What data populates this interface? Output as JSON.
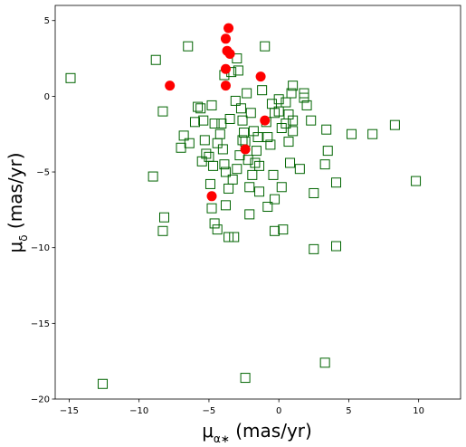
{
  "chart_data": {
    "type": "scatter",
    "xlabel": {
      "symbol": "μ",
      "sub": "α∗",
      "rest": " (mas/yr)"
    },
    "ylabel": {
      "symbol": "μ",
      "sub": "δ",
      "rest": " (mas/yr)"
    },
    "xlim": [
      -16,
      13
    ],
    "ylim": [
      -20,
      6
    ],
    "xticks": [
      -15,
      -10,
      -5,
      0,
      5,
      10
    ],
    "yticks": [
      -20,
      -15,
      -10,
      -5,
      0,
      5
    ],
    "grid": false,
    "colors": {
      "squares": "#006400",
      "circles": "#ff0000"
    },
    "series": [
      {
        "marker": "square-open",
        "points": [
          [
            -14.9,
            1.2
          ],
          [
            -12.6,
            -19.0
          ],
          [
            -9.0,
            -5.3
          ],
          [
            -8.8,
            2.4
          ],
          [
            -8.3,
            -1.0
          ],
          [
            -8.2,
            -8.0
          ],
          [
            -8.3,
            -8.9
          ],
          [
            -6.5,
            3.3
          ],
          [
            -5.8,
            -0.7
          ],
          [
            -5.4,
            -1.6
          ],
          [
            -5.3,
            -2.9
          ],
          [
            -5.0,
            -4.0
          ],
          [
            -4.8,
            -0.6
          ],
          [
            -4.6,
            -1.8
          ],
          [
            -4.9,
            -5.8
          ],
          [
            -4.8,
            -7.4
          ],
          [
            -4.6,
            -8.4
          ],
          [
            -4.4,
            -8.8
          ],
          [
            -4.2,
            -2.5
          ],
          [
            -4.0,
            -3.5
          ],
          [
            -3.9,
            -4.5
          ],
          [
            -3.8,
            -5.0
          ],
          [
            -3.8,
            -7.2
          ],
          [
            -3.6,
            -9.3
          ],
          [
            -3.2,
            -9.3
          ],
          [
            -3.5,
            -1.5
          ],
          [
            -3.4,
            1.6
          ],
          [
            -3.0,
            2.5
          ],
          [
            -2.7,
            -0.8
          ],
          [
            -2.6,
            -1.6
          ],
          [
            -2.5,
            -2.4
          ],
          [
            -2.4,
            -3.0
          ],
          [
            -2.2,
            -4.2
          ],
          [
            -2.1,
            -6.0
          ],
          [
            -2.1,
            -7.8
          ],
          [
            -2.3,
            0.2
          ],
          [
            -2.0,
            -1.1
          ],
          [
            -1.8,
            -2.3
          ],
          [
            -1.6,
            -3.6
          ],
          [
            -1.4,
            -4.6
          ],
          [
            -1.4,
            -6.3
          ],
          [
            -1.2,
            0.4
          ],
          [
            -1.0,
            3.3
          ],
          [
            -0.9,
            -1.7
          ],
          [
            -0.8,
            -2.7
          ],
          [
            -0.8,
            -7.3
          ],
          [
            -0.5,
            -0.5
          ],
          [
            -0.4,
            -5.2
          ],
          [
            -0.3,
            -8.9
          ],
          [
            -0.3,
            -6.8
          ],
          [
            0.0,
            -0.2
          ],
          [
            0.0,
            -1.0
          ],
          [
            0.2,
            -2.1
          ],
          [
            0.2,
            -6.0
          ],
          [
            0.3,
            -8.8
          ],
          [
            0.5,
            -0.4
          ],
          [
            0.7,
            -1.2
          ],
          [
            0.7,
            -3.0
          ],
          [
            0.8,
            -4.4
          ],
          [
            0.9,
            0.2
          ],
          [
            1.0,
            -1.6
          ],
          [
            1.0,
            -2.3
          ],
          [
            1.0,
            0.7
          ],
          [
            1.5,
            -4.8
          ],
          [
            1.8,
            0.2
          ],
          [
            1.8,
            -0.1
          ],
          [
            2.0,
            -0.6
          ],
          [
            2.3,
            -1.6
          ],
          [
            2.5,
            -6.4
          ],
          [
            2.5,
            -10.1
          ],
          [
            3.3,
            -4.5
          ],
          [
            3.4,
            -2.2
          ],
          [
            3.5,
            -3.6
          ],
          [
            3.3,
            -17.6
          ],
          [
            4.1,
            -5.7
          ],
          [
            4.1,
            -9.9
          ],
          [
            5.2,
            -2.5
          ],
          [
            6.7,
            -2.5
          ],
          [
            8.3,
            -1.9
          ],
          [
            9.8,
            -5.6
          ],
          [
            -2.4,
            -18.6
          ],
          [
            -7.0,
            -3.4
          ],
          [
            -6.8,
            -2.6
          ],
          [
            -6.4,
            -3.1
          ],
          [
            -6.0,
            -1.7
          ],
          [
            -5.5,
            -4.3
          ],
          [
            -5.2,
            -3.8
          ],
          [
            -4.7,
            -4.6
          ],
          [
            -4.4,
            -3.1
          ],
          [
            -4.1,
            -1.8
          ],
          [
            -3.6,
            -6.1
          ],
          [
            -3.3,
            -5.5
          ],
          [
            -3.0,
            -4.8
          ],
          [
            -2.8,
            -3.9
          ],
          [
            -2.6,
            -2.9
          ],
          [
            -3.1,
            -0.3
          ],
          [
            -1.9,
            -5.2
          ],
          [
            -1.7,
            -4.4
          ],
          [
            -1.5,
            -2.7
          ],
          [
            -0.3,
            -1.1
          ],
          [
            0.5,
            -1.8
          ],
          [
            -0.6,
            -3.2
          ],
          [
            -3.9,
            1.4
          ],
          [
            -2.9,
            1.7
          ],
          [
            -5.6,
            -0.8
          ]
        ]
      },
      {
        "marker": "circle-filled",
        "points": [
          [
            -3.6,
            4.5
          ],
          [
            -3.8,
            3.8
          ],
          [
            -3.7,
            3.0
          ],
          [
            -3.5,
            2.8
          ],
          [
            -3.8,
            1.8
          ],
          [
            -1.3,
            1.3
          ],
          [
            -7.8,
            0.7
          ],
          [
            -3.8,
            0.7
          ],
          [
            -1.0,
            -1.6
          ],
          [
            -4.8,
            -6.6
          ],
          [
            -2.4,
            -3.5
          ]
        ]
      }
    ]
  }
}
